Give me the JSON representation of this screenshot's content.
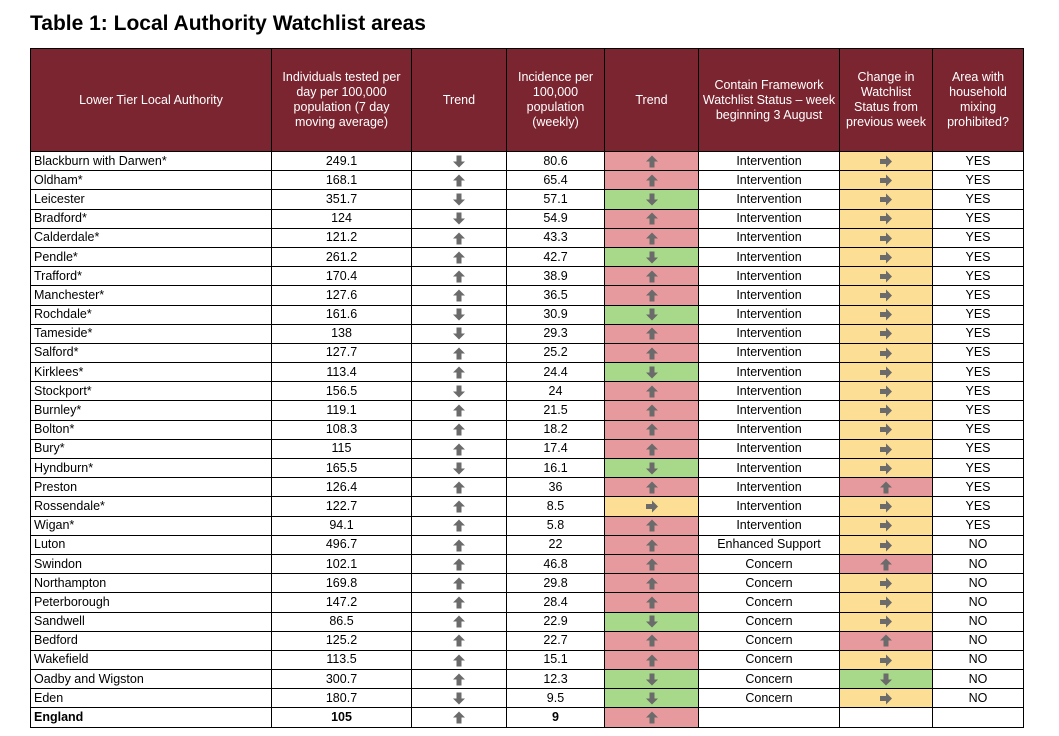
{
  "title": "Table 1: Local Authority Watchlist areas",
  "headers": [
    "Lower Tier Local Authority",
    "Individuals tested per day per 100,000 population (7 day moving average)",
    "Trend",
    "Incidence per 100,000 population (weekly)",
    "Trend",
    "Contain Framework Watchlist Status – week beginning 3 August",
    "Change in Watchlist Status from previous week",
    "Area with household mixing prohibited?"
  ],
  "colors": {
    "header_bg": "#7b2530",
    "red": "#e79a9e",
    "green": "#a8d88a",
    "amber": "#fcdf94"
  },
  "rows": [
    {
      "name": "Blackburn with Darwen*",
      "tested": "249.1",
      "tested_trend": "down",
      "incidence": "80.6",
      "inc_trend": "up",
      "inc_color": "red",
      "status": "Intervention",
      "change": "right",
      "change_color": "amber",
      "mixing": "YES"
    },
    {
      "name": "Oldham*",
      "tested": "168.1",
      "tested_trend": "up",
      "incidence": "65.4",
      "inc_trend": "up",
      "inc_color": "red",
      "status": "Intervention",
      "change": "right",
      "change_color": "amber",
      "mixing": "YES"
    },
    {
      "name": "Leicester",
      "tested": "351.7",
      "tested_trend": "down",
      "incidence": "57.1",
      "inc_trend": "down",
      "inc_color": "green",
      "status": "Intervention",
      "change": "right",
      "change_color": "amber",
      "mixing": "YES"
    },
    {
      "name": "Bradford*",
      "tested": "124",
      "tested_trend": "down",
      "incidence": "54.9",
      "inc_trend": "up",
      "inc_color": "red",
      "status": "Intervention",
      "change": "right",
      "change_color": "amber",
      "mixing": "YES"
    },
    {
      "name": "Calderdale*",
      "tested": "121.2",
      "tested_trend": "up",
      "incidence": "43.3",
      "inc_trend": "up",
      "inc_color": "red",
      "status": "Intervention",
      "change": "right",
      "change_color": "amber",
      "mixing": "YES"
    },
    {
      "name": "Pendle*",
      "tested": "261.2",
      "tested_trend": "up",
      "incidence": "42.7",
      "inc_trend": "down",
      "inc_color": "green",
      "status": "Intervention",
      "change": "right",
      "change_color": "amber",
      "mixing": "YES"
    },
    {
      "name": "Trafford*",
      "tested": "170.4",
      "tested_trend": "up",
      "incidence": "38.9",
      "inc_trend": "up",
      "inc_color": "red",
      "status": "Intervention",
      "change": "right",
      "change_color": "amber",
      "mixing": "YES"
    },
    {
      "name": "Manchester*",
      "tested": "127.6",
      "tested_trend": "up",
      "incidence": "36.5",
      "inc_trend": "up",
      "inc_color": "red",
      "status": "Intervention",
      "change": "right",
      "change_color": "amber",
      "mixing": "YES"
    },
    {
      "name": "Rochdale*",
      "tested": "161.6",
      "tested_trend": "down",
      "incidence": "30.9",
      "inc_trend": "down",
      "inc_color": "green",
      "status": "Intervention",
      "change": "right",
      "change_color": "amber",
      "mixing": "YES"
    },
    {
      "name": "Tameside*",
      "tested": "138",
      "tested_trend": "down",
      "incidence": "29.3",
      "inc_trend": "up",
      "inc_color": "red",
      "status": "Intervention",
      "change": "right",
      "change_color": "amber",
      "mixing": "YES"
    },
    {
      "name": "Salford*",
      "tested": "127.7",
      "tested_trend": "up",
      "incidence": "25.2",
      "inc_trend": "up",
      "inc_color": "red",
      "status": "Intervention",
      "change": "right",
      "change_color": "amber",
      "mixing": "YES"
    },
    {
      "name": "Kirklees*",
      "tested": "113.4",
      "tested_trend": "up",
      "incidence": "24.4",
      "inc_trend": "down",
      "inc_color": "green",
      "status": "Intervention",
      "change": "right",
      "change_color": "amber",
      "mixing": "YES"
    },
    {
      "name": "Stockport*",
      "tested": "156.5",
      "tested_trend": "down",
      "incidence": "24",
      "inc_trend": "up",
      "inc_color": "red",
      "status": "Intervention",
      "change": "right",
      "change_color": "amber",
      "mixing": "YES"
    },
    {
      "name": "Burnley*",
      "tested": "119.1",
      "tested_trend": "up",
      "incidence": "21.5",
      "inc_trend": "up",
      "inc_color": "red",
      "status": "Intervention",
      "change": "right",
      "change_color": "amber",
      "mixing": "YES"
    },
    {
      "name": "Bolton*",
      "tested": "108.3",
      "tested_trend": "up",
      "incidence": "18.2",
      "inc_trend": "up",
      "inc_color": "red",
      "status": "Intervention",
      "change": "right",
      "change_color": "amber",
      "mixing": "YES"
    },
    {
      "name": "Bury*",
      "tested": "115",
      "tested_trend": "up",
      "incidence": "17.4",
      "inc_trend": "up",
      "inc_color": "red",
      "status": "Intervention",
      "change": "right",
      "change_color": "amber",
      "mixing": "YES"
    },
    {
      "name": "Hyndburn*",
      "tested": "165.5",
      "tested_trend": "down",
      "incidence": "16.1",
      "inc_trend": "down",
      "inc_color": "green",
      "status": "Intervention",
      "change": "right",
      "change_color": "amber",
      "mixing": "YES"
    },
    {
      "name": "Preston",
      "tested": "126.4",
      "tested_trend": "up",
      "incidence": "36",
      "inc_trend": "up",
      "inc_color": "red",
      "status": "Intervention",
      "change": "up",
      "change_color": "red",
      "mixing": "YES"
    },
    {
      "name": "Rossendale*",
      "tested": "122.7",
      "tested_trend": "up",
      "incidence": "8.5",
      "inc_trend": "right",
      "inc_color": "amber",
      "status": "Intervention",
      "change": "right",
      "change_color": "amber",
      "mixing": "YES"
    },
    {
      "name": "Wigan*",
      "tested": "94.1",
      "tested_trend": "up",
      "incidence": "5.8",
      "inc_trend": "up",
      "inc_color": "red",
      "status": "Intervention",
      "change": "right",
      "change_color": "amber",
      "mixing": "YES"
    },
    {
      "name": "Luton",
      "tested": "496.7",
      "tested_trend": "up",
      "incidence": "22",
      "inc_trend": "up",
      "inc_color": "red",
      "status": "Enhanced Support",
      "change": "right",
      "change_color": "amber",
      "mixing": "NO"
    },
    {
      "name": "Swindon",
      "tested": "102.1",
      "tested_trend": "up",
      "incidence": "46.8",
      "inc_trend": "up",
      "inc_color": "red",
      "status": "Concern",
      "change": "up",
      "change_color": "red",
      "mixing": "NO"
    },
    {
      "name": "Northampton",
      "tested": "169.8",
      "tested_trend": "up",
      "incidence": "29.8",
      "inc_trend": "up",
      "inc_color": "red",
      "status": "Concern",
      "change": "right",
      "change_color": "amber",
      "mixing": "NO"
    },
    {
      "name": "Peterborough",
      "tested": "147.2",
      "tested_trend": "up",
      "incidence": "28.4",
      "inc_trend": "up",
      "inc_color": "red",
      "status": "Concern",
      "change": "right",
      "change_color": "amber",
      "mixing": "NO"
    },
    {
      "name": "Sandwell",
      "tested": "86.5",
      "tested_trend": "up",
      "incidence": "22.9",
      "inc_trend": "down",
      "inc_color": "green",
      "status": "Concern",
      "change": "right",
      "change_color": "amber",
      "mixing": "NO"
    },
    {
      "name": "Bedford",
      "tested": "125.2",
      "tested_trend": "up",
      "incidence": "22.7",
      "inc_trend": "up",
      "inc_color": "red",
      "status": "Concern",
      "change": "up",
      "change_color": "red",
      "mixing": "NO"
    },
    {
      "name": "Wakefield",
      "tested": "113.5",
      "tested_trend": "up",
      "incidence": "15.1",
      "inc_trend": "up",
      "inc_color": "red",
      "status": "Concern",
      "change": "right",
      "change_color": "amber",
      "mixing": "NO"
    },
    {
      "name": "Oadby and Wigston",
      "tested": "300.7",
      "tested_trend": "up",
      "incidence": "12.3",
      "inc_trend": "down",
      "inc_color": "green",
      "status": "Concern",
      "change": "down",
      "change_color": "green",
      "mixing": "NO"
    },
    {
      "name": "Eden",
      "tested": "180.7",
      "tested_trend": "down",
      "incidence": "9.5",
      "inc_trend": "down",
      "inc_color": "green",
      "status": "Concern",
      "change": "right",
      "change_color": "amber",
      "mixing": "NO"
    },
    {
      "name": "England",
      "tested": "105",
      "tested_trend": "up",
      "incidence": "9",
      "inc_trend": "up",
      "inc_color": "red",
      "status": "",
      "change": "",
      "change_color": "white",
      "mixing": "",
      "total": true
    }
  ]
}
